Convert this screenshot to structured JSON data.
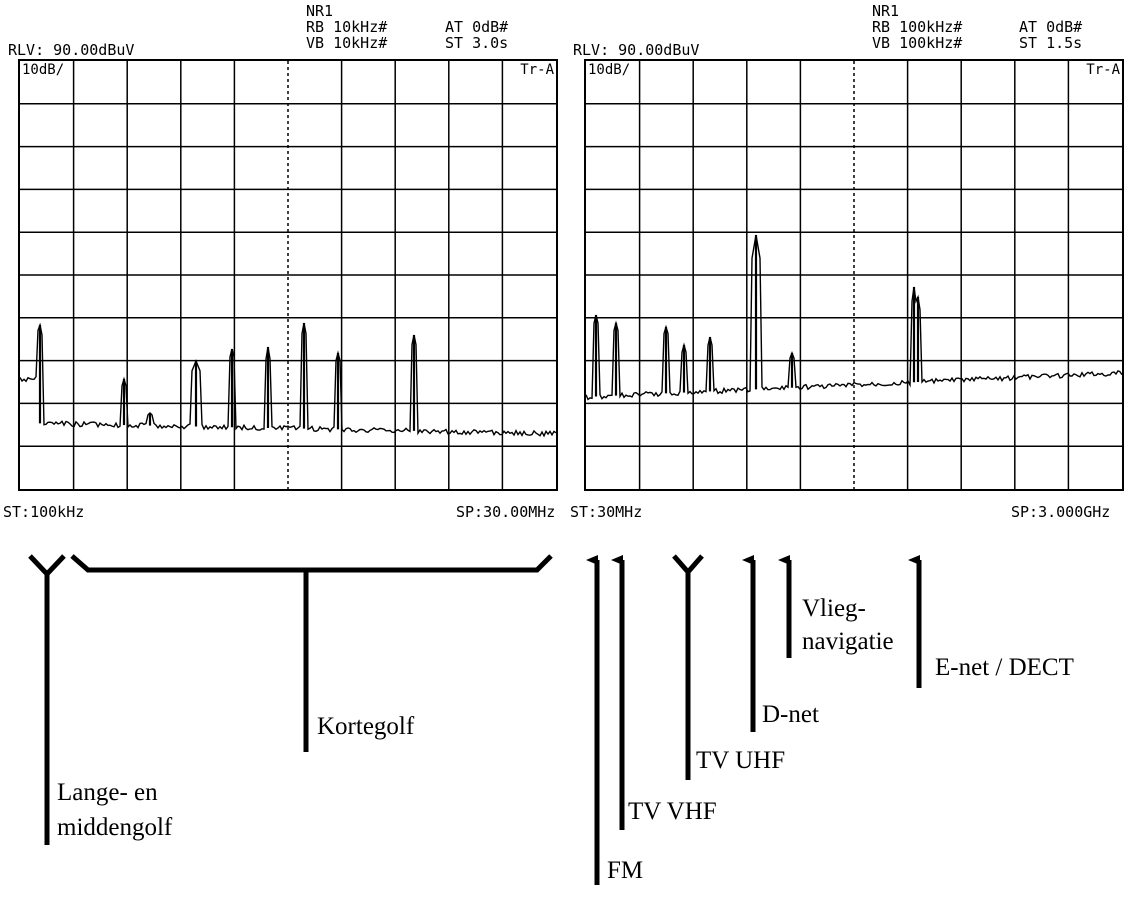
{
  "left_analyzer": {
    "nr": "NR1",
    "rb": "RB 10kHz#",
    "vb": "VB 10kHz#",
    "at": "AT 0dB#",
    "st": "ST 3.0s",
    "rlv": "RLV: 90.00dBuV",
    "scale": "10dB/",
    "trace": "Tr-A",
    "start": "ST:100kHz",
    "stop": "SP:30.00MHz"
  },
  "right_analyzer": {
    "nr": "NR1",
    "rb": "RB 100kHz#",
    "vb": "VB 100kHz#",
    "at": "AT 0dB#",
    "st": "ST 1.5s",
    "rlv": "RLV: 90.00dBuV",
    "scale": "10dB/",
    "trace": "Tr-A",
    "start": "ST:30MHz",
    "stop": "SP:3.000GHz"
  },
  "annotations": {
    "lange": [
      "Lange- en",
      "middengolf"
    ],
    "kortegolf": "Kortegolf",
    "fm": "FM",
    "tv_vhf": "TV VHF",
    "tv_uhf": "TV UHF",
    "d_net": "D-net",
    "vlieg": [
      "Vlieg-",
      "navigatie"
    ],
    "e_net": "E-net / DECT"
  }
}
